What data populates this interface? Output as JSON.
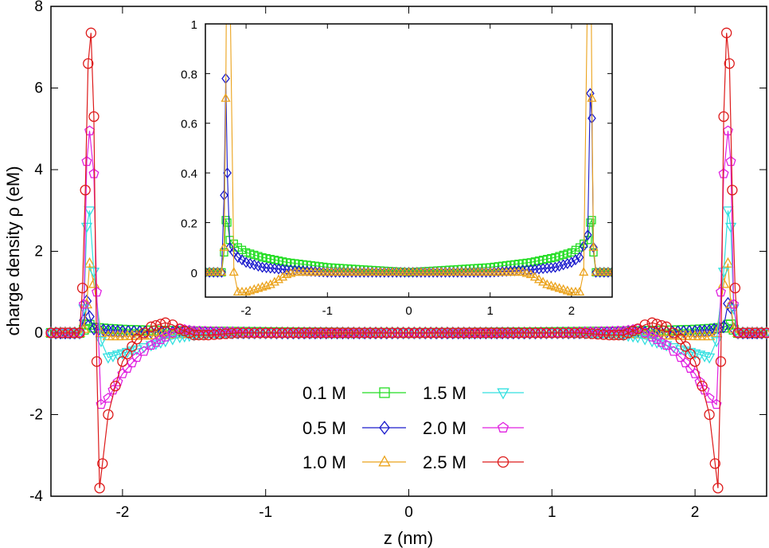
{
  "chart_data": {
    "type": "line",
    "xlabel": "z (nm)",
    "ylabel": "charge density ρ (eM)",
    "xlim": [
      -2.5,
      2.5
    ],
    "ylim": [
      -4,
      8
    ],
    "xticks": [
      "-2",
      "-1",
      "0",
      "1",
      "2"
    ],
    "yticks": [
      "-4",
      "-2",
      "0",
      "2",
      "4",
      "6",
      "8"
    ],
    "legend_position": "lower-center",
    "series": [
      {
        "name": "0.1 M",
        "color": "#22dd22",
        "marker": "square",
        "x": [
          -2.5,
          -2.4,
          -2.3,
          -2.27,
          -2.25,
          -2.23,
          -2.2,
          -2.1,
          -2.0,
          -1.8,
          -1.5,
          -1.0,
          -0.5,
          0,
          0.5,
          1.0,
          1.5,
          1.8,
          2.0,
          2.1,
          2.2,
          2.23,
          2.25,
          2.27,
          2.3,
          2.4,
          2.5
        ],
        "y": [
          0,
          0,
          0,
          0.08,
          0.21,
          0.2,
          0.13,
          0.1,
          0.08,
          0.06,
          0.04,
          0.02,
          0.01,
          0,
          0.01,
          0.02,
          0.04,
          0.06,
          0.08,
          0.1,
          0.13,
          0.2,
          0.21,
          0.08,
          0,
          0,
          0
        ]
      },
      {
        "name": "0.5 M",
        "color": "#1a1acc",
        "marker": "diamond",
        "x": [
          -2.5,
          -2.4,
          -2.3,
          -2.27,
          -2.25,
          -2.23,
          -2.2,
          -2.1,
          -2.0,
          -1.8,
          -1.5,
          -1.0,
          -0.5,
          0,
          0.5,
          1.0,
          1.5,
          1.8,
          2.0,
          2.1,
          2.2,
          2.23,
          2.25,
          2.27,
          2.3,
          2.4,
          2.5
        ],
        "y": [
          0,
          0,
          0,
          0.31,
          0.78,
          0.4,
          0.1,
          0.06,
          0.04,
          0.02,
          0.01,
          0,
          0,
          0,
          0,
          0,
          0.01,
          0.02,
          0.04,
          0.06,
          0.15,
          0.72,
          0.62,
          0.1,
          0,
          0,
          0
        ]
      },
      {
        "name": "1.0 M",
        "color": "#eba21a",
        "marker": "triangle-up",
        "x": [
          -2.5,
          -2.4,
          -2.3,
          -2.27,
          -2.25,
          -2.23,
          -2.2,
          -2.15,
          -2.1,
          -2.0,
          -1.9,
          -1.8,
          -1.7,
          -1.6,
          -1.5,
          -1.4,
          -1.0,
          -0.5,
          0,
          0.5,
          1.0,
          1.4,
          1.5,
          1.6,
          1.7,
          1.8,
          1.9,
          2.0,
          2.1,
          2.15,
          2.2,
          2.23,
          2.25,
          2.27,
          2.3,
          2.4,
          2.5
        ],
        "y": [
          0,
          0,
          0,
          0.1,
          0.7,
          1.7,
          1.2,
          0.0,
          -0.08,
          -0.08,
          -0.07,
          -0.06,
          -0.05,
          -0.03,
          -0.01,
          0,
          0,
          0,
          0,
          0,
          0,
          0,
          -0.01,
          -0.03,
          -0.05,
          -0.06,
          -0.07,
          -0.08,
          -0.08,
          0.0,
          1.2,
          1.7,
          0.7,
          0.1,
          0,
          0,
          0
        ]
      },
      {
        "name": "1.5 M",
        "color": "#33e0e0",
        "marker": "triangle-down",
        "x": [
          -2.5,
          -2.3,
          -2.27,
          -2.25,
          -2.23,
          -2.2,
          -2.15,
          -2.1,
          -2.0,
          -1.9,
          -1.8,
          -1.7,
          -1.6,
          -1.5,
          -1.4,
          -1.0,
          0,
          1.0,
          1.4,
          1.5,
          1.6,
          1.7,
          1.8,
          1.9,
          2.0,
          2.1,
          2.15,
          2.2,
          2.23,
          2.25,
          2.27,
          2.3,
          2.5
        ],
        "y": [
          0,
          0,
          0.6,
          2.6,
          3.0,
          1.5,
          -0.2,
          -0.6,
          -0.5,
          -0.4,
          -0.3,
          -0.2,
          -0.1,
          -0.05,
          0,
          0,
          0,
          0,
          0,
          -0.05,
          -0.1,
          -0.2,
          -0.3,
          -0.4,
          -0.5,
          -0.6,
          -0.2,
          1.5,
          3.0,
          2.6,
          0.6,
          0,
          0
        ]
      },
      {
        "name": "2.0 M",
        "color": "#e020e0",
        "marker": "pentagon",
        "x": [
          -2.5,
          -2.3,
          -2.27,
          -2.25,
          -2.23,
          -2.2,
          -2.18,
          -2.15,
          -2.1,
          -2.0,
          -1.9,
          -1.8,
          -1.7,
          -1.6,
          -1.5,
          -1.0,
          0,
          1.0,
          1.5,
          1.6,
          1.7,
          1.8,
          1.9,
          2.0,
          2.1,
          2.15,
          2.18,
          2.2,
          2.23,
          2.25,
          2.27,
          2.3,
          2.5
        ],
        "y": [
          0,
          0,
          0.7,
          4.2,
          4.95,
          3.9,
          1.0,
          -1.75,
          -1.6,
          -1.0,
          -0.6,
          -0.3,
          -0.1,
          0.1,
          0.05,
          0,
          0,
          0,
          0.05,
          0.1,
          -0.1,
          -0.3,
          -0.6,
          -1.0,
          -1.6,
          -1.75,
          1.0,
          3.9,
          4.95,
          4.2,
          0.7,
          0,
          0
        ]
      },
      {
        "name": "2.5 M",
        "color": "#dd1a1a",
        "marker": "circle",
        "x": [
          -2.5,
          -2.3,
          -2.28,
          -2.26,
          -2.24,
          -2.22,
          -2.2,
          -2.18,
          -2.16,
          -2.14,
          -2.1,
          -2.05,
          -2.0,
          -1.9,
          -1.8,
          -1.7,
          -1.65,
          -1.6,
          -1.5,
          -1.4,
          -1.2,
          -1.0,
          -0.5,
          0,
          0.5,
          1.0,
          1.2,
          1.4,
          1.5,
          1.6,
          1.65,
          1.7,
          1.8,
          1.9,
          2.0,
          2.05,
          2.1,
          2.14,
          2.16,
          2.18,
          2.2,
          2.22,
          2.24,
          2.26,
          2.28,
          2.3,
          2.5
        ],
        "y": [
          0,
          0,
          1.1,
          3.5,
          6.6,
          7.35,
          5.3,
          -0.7,
          -3.8,
          -3.2,
          -2.0,
          -1.3,
          -0.7,
          -0.15,
          0.15,
          0.25,
          0.2,
          0.1,
          -0.05,
          -0.05,
          0,
          0,
          0,
          0,
          0,
          0,
          0,
          -0.05,
          -0.05,
          0.1,
          0.2,
          0.25,
          0.15,
          -0.15,
          -0.7,
          -1.3,
          -2.0,
          -3.2,
          -3.8,
          -0.7,
          5.3,
          7.35,
          6.6,
          3.5,
          1.1,
          0,
          0
        ]
      }
    ],
    "inset": {
      "type": "line",
      "xlim": [
        -2.5,
        2.5
      ],
      "ylim": [
        -0.1,
        1
      ],
      "xticks": [
        "-2",
        "-1",
        "0",
        "1",
        "2"
      ],
      "yticks": [
        "0",
        "0.2",
        "0.4",
        "0.6",
        "0.8",
        "1"
      ],
      "series_shown": [
        "0.1 M",
        "0.5 M",
        "1.0 M"
      ]
    }
  }
}
